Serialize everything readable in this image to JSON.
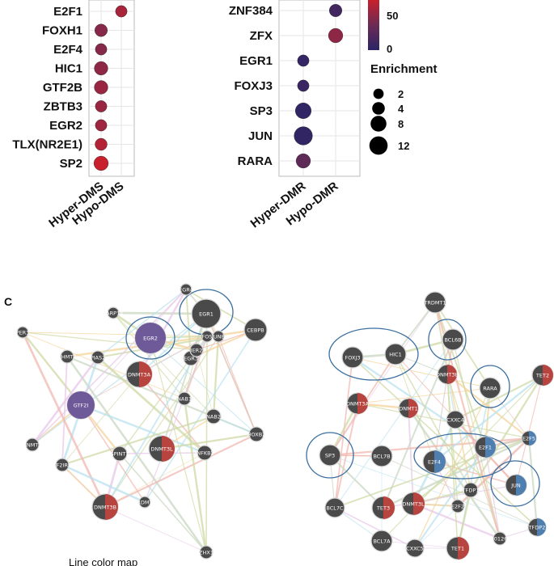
{
  "chart_data": [
    {
      "type": "scatter",
      "title": "",
      "categories_x": [
        "Hyper-DMS",
        "Hypo-DMS"
      ],
      "categories_y": [
        "E2F1",
        "FOXH1",
        "E2F4",
        "HIC1",
        "GTF2B",
        "ZBTB3",
        "EGR2",
        "TLX(NR2E1)",
        "SP2"
      ],
      "points": [
        {
          "x": "Hypo-DMS",
          "y": "E2F1",
          "enrichment": 3,
          "value": 58
        },
        {
          "x": "Hyper-DMS",
          "y": "FOXH1",
          "enrichment": 4,
          "value": 45
        },
        {
          "x": "Hyper-DMS",
          "y": "E2F4",
          "enrichment": 3,
          "value": 45
        },
        {
          "x": "Hyper-DMS",
          "y": "HIC1",
          "enrichment": 5,
          "value": 48
        },
        {
          "x": "Hyper-DMS",
          "y": "GTF2B",
          "enrichment": 5,
          "value": 52
        },
        {
          "x": "Hyper-DMS",
          "y": "ZBTB3",
          "enrichment": 3,
          "value": 52
        },
        {
          "x": "Hyper-DMS",
          "y": "EGR2",
          "enrichment": 3,
          "value": 55
        },
        {
          "x": "Hyper-DMS",
          "y": "TLX(NR2E1)",
          "enrichment": 3.5,
          "value": 62
        },
        {
          "x": "Hyper-DMS",
          "y": "SP2",
          "enrichment": 6,
          "value": 70
        }
      ]
    },
    {
      "type": "scatter",
      "title": "",
      "categories_x": [
        "Hyper-DMR",
        "Hypo-DMR"
      ],
      "categories_y": [
        "ZNF384",
        "ZFX",
        "EGR1",
        "FOXJ3",
        "SP3",
        "JUN",
        "RARA"
      ],
      "points": [
        {
          "x": "Hypo-DMR",
          "y": "ZNF384",
          "enrichment": 4,
          "value": 12
        },
        {
          "x": "Hypo-DMR",
          "y": "ZFX",
          "enrichment": 6,
          "value": 48
        },
        {
          "x": "Hyper-DMR",
          "y": "EGR1",
          "enrichment": 3,
          "value": 5
        },
        {
          "x": "Hyper-DMR",
          "y": "FOXJ3",
          "enrichment": 3,
          "value": 8
        },
        {
          "x": "Hyper-DMR",
          "y": "SP3",
          "enrichment": 8,
          "value": 3
        },
        {
          "x": "Hyper-DMR",
          "y": "JUN",
          "enrichment": 12,
          "value": 4
        },
        {
          "x": "Hyper-DMR",
          "y": "RARA",
          "enrichment": 6,
          "value": 28
        }
      ]
    }
  ],
  "legend": {
    "color_ticks": [
      "50",
      "0"
    ],
    "size_title": "Enrichment",
    "size_values": [
      2,
      4,
      8,
      12
    ]
  },
  "colors": {
    "low": "#2b2466",
    "mid": "#6b2b55",
    "high": "#c8202c"
  },
  "panel_c": {
    "label": "C",
    "left_nodes": [
      "EGR4",
      "EGR1",
      "PARP14",
      "EGR2",
      "FOS",
      "JUNB",
      "CEBPB",
      "PER3",
      "EHMT2",
      "PIAS2",
      "EGR3",
      "IER2",
      "GTF2I",
      "DNMT3A",
      "NAB1",
      "NAB2",
      "HOXB2",
      "BNMT1",
      "GTF2IRD1",
      "SPINT1",
      "DNMT3L",
      "INFKB2",
      "DNMT3B",
      "TRDMT1",
      "ZHX1"
    ],
    "right_nodes": [
      "TRDMT1",
      "FOXJ3",
      "HIC1",
      "BCL6B",
      "DNMT3B",
      "TET2",
      "RARA",
      "DNMT3A",
      "DNMT1",
      "CXXC4",
      "E2F1",
      "E2F5",
      "SP3",
      "BCL7B",
      "E2F4",
      "TFDP1",
      "JUN",
      "BCL7C",
      "TET3",
      "DNMT3L",
      "E2F2",
      "TFDP2",
      "BCL7A",
      "CXXC5",
      "TET1",
      "AP001267.5"
    ],
    "caption": "Line color map"
  }
}
